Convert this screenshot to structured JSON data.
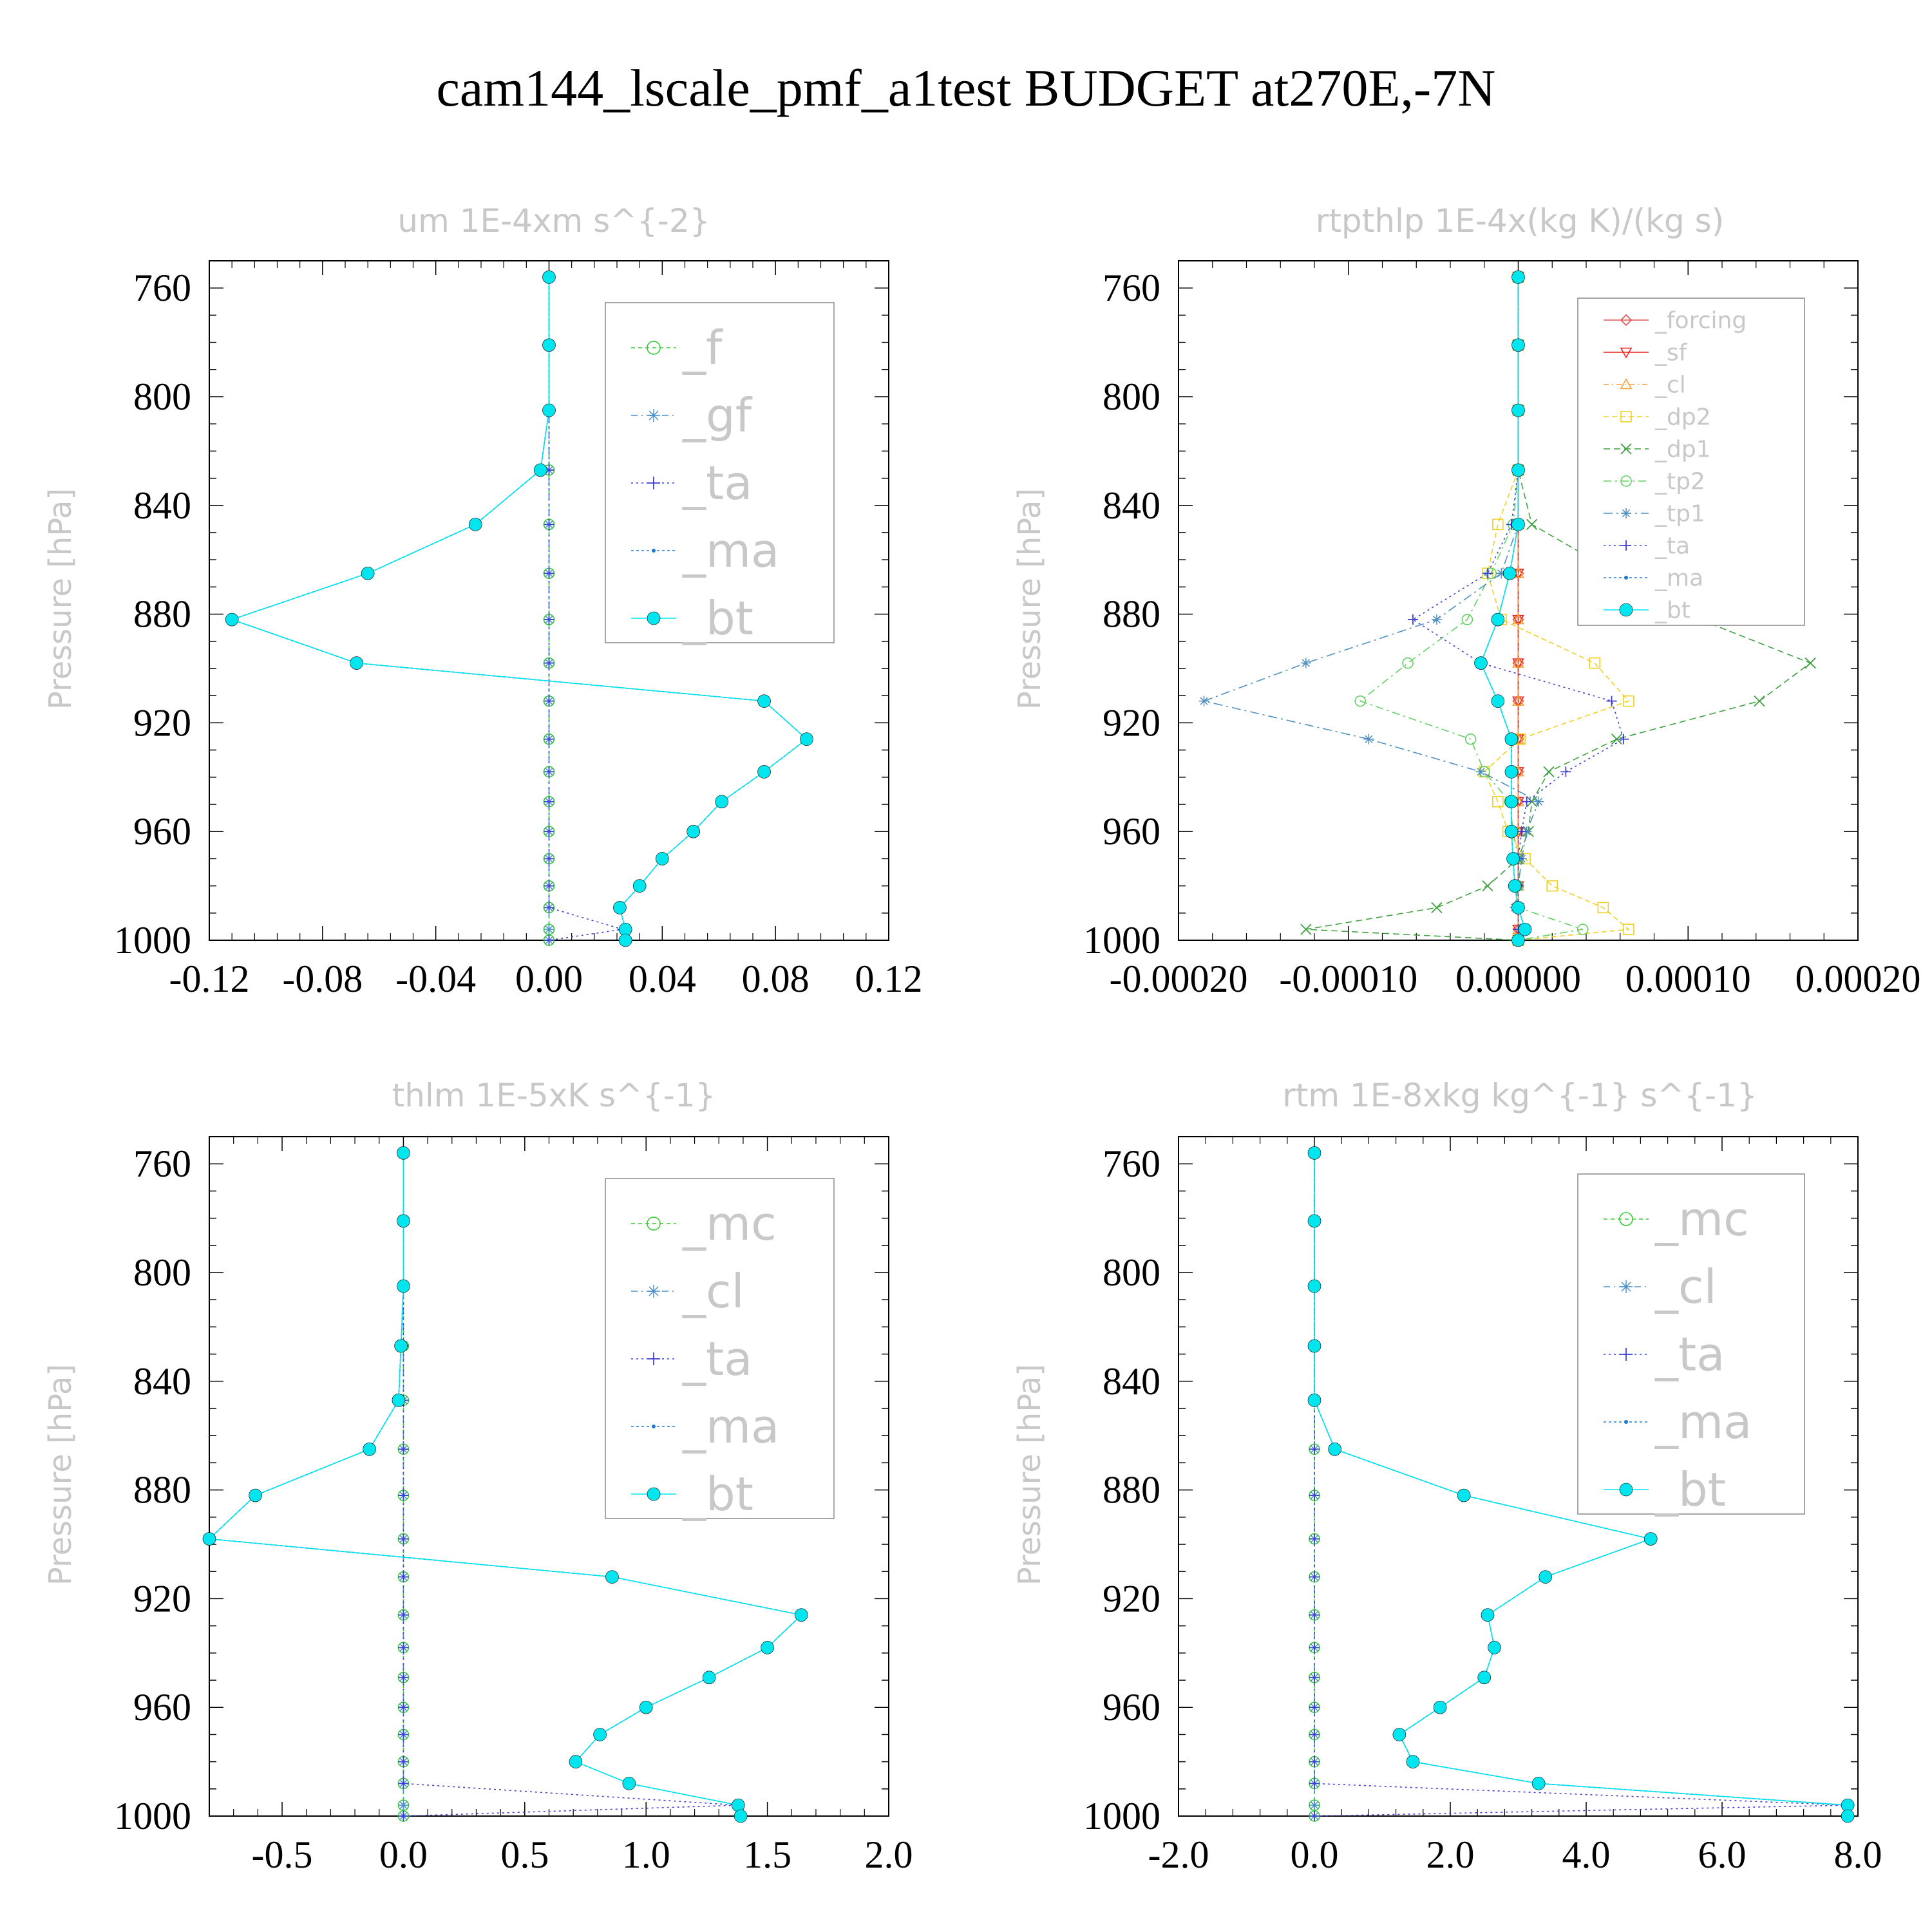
{
  "title": "cam144_lscale_pmf_a1test  BUDGET at270E,-7N",
  "colors": {
    "f": "#33cc33",
    "gf": "#4a90c8",
    "ta": "#4040d0",
    "ma": "#1f78d4",
    "bt": "#00e5ee",
    "forcing": "#e05050",
    "sf": "#ee2020",
    "cl": "#f0a030",
    "dp2": "#f0d020",
    "dp1": "#40a040",
    "tp2": "#60d060",
    "tp1": "#5090c0",
    "mc": "#33cc33",
    "cl_b": "#4a90c8"
  },
  "chart_data": [
    {
      "type": "line",
      "title": "um  1E-4xm s^{-2}",
      "ylabel": "Pressure [hPa]",
      "ylim": [
        1000,
        750
      ],
      "xlim": [
        -0.12,
        0.12
      ],
      "xticks": [
        "-0.12",
        "-0.08",
        "-0.04",
        "0.00",
        "0.04",
        "0.08",
        "0.12"
      ],
      "xtick_values": [
        -0.12,
        -0.08,
        -0.04,
        0.0,
        0.04,
        0.08,
        0.12
      ],
      "yticks": [
        "760",
        "800",
        "840",
        "880",
        "920",
        "960",
        "1000"
      ],
      "y": [
        756,
        781,
        805,
        827,
        847,
        865,
        882,
        898,
        912,
        926,
        938,
        949,
        960,
        970,
        980,
        988,
        996,
        1000
      ],
      "legend_size": "large",
      "series": [
        {
          "name": "_f",
          "key": "f",
          "marker": "circle-open",
          "dash": "6,5",
          "values": [
            0,
            0,
            0,
            0,
            0,
            0,
            0,
            0,
            0,
            0,
            0,
            0,
            0,
            0,
            0,
            0,
            0,
            0
          ]
        },
        {
          "name": "_gf",
          "key": "gf",
          "marker": "star",
          "dash": "10,6,2,6",
          "values": [
            0,
            0,
            0,
            0,
            0,
            0,
            0,
            0,
            0,
            0,
            0,
            0,
            0,
            0,
            0,
            0,
            0,
            0
          ]
        },
        {
          "name": "_ta",
          "key": "ta",
          "marker": "plus",
          "dash": "3,5",
          "values": [
            0,
            0,
            0,
            0,
            0,
            0,
            0,
            0,
            0,
            0,
            0,
            0,
            0,
            0,
            0,
            0,
            0.026,
            0
          ]
        },
        {
          "name": "_ma",
          "key": "ma",
          "marker": "dot",
          "dash": "4,4",
          "values": [
            0,
            0,
            0,
            -0.003,
            -0.026,
            -0.064,
            -0.112,
            -0.068,
            0.076,
            0.091,
            0.076,
            0.061,
            0.051,
            0.04,
            0.032,
            0.025,
            0.027,
            0.027
          ]
        },
        {
          "name": "_bt",
          "key": "bt",
          "marker": "filled",
          "dash": "",
          "values": [
            0,
            0,
            0,
            -0.003,
            -0.026,
            -0.064,
            -0.112,
            -0.068,
            0.076,
            0.091,
            0.076,
            0.061,
            0.051,
            0.04,
            0.032,
            0.025,
            0.027,
            0.027
          ]
        }
      ]
    },
    {
      "type": "line",
      "title": "rtpthlp  1E-4x(kg K)/(kg s)",
      "ylabel": "Pressure [hPa]",
      "ylim": [
        1000,
        750
      ],
      "xlim": [
        -0.0002,
        0.0002
      ],
      "xticks": [
        "-0.00020",
        "-0.00010",
        "0.00000",
        "0.00010",
        "0.00020"
      ],
      "xtick_values": [
        -0.0002,
        -0.0001,
        0.0,
        0.0001,
        0.0002
      ],
      "yticks": [
        "760",
        "800",
        "840",
        "880",
        "920",
        "960",
        "1000"
      ],
      "y": [
        756,
        781,
        805,
        827,
        847,
        865,
        882,
        898,
        912,
        926,
        938,
        949,
        960,
        970,
        980,
        988,
        996,
        1000
      ],
      "legend_size": "small",
      "series": [
        {
          "name": "_forcing",
          "key": "forcing",
          "marker": "diamond",
          "dash": "",
          "values": [
            0,
            0,
            0,
            0,
            0,
            0,
            0,
            0,
            0,
            0,
            0,
            0,
            0,
            0,
            0,
            0,
            0,
            0
          ]
        },
        {
          "name": "_sf",
          "key": "sf",
          "marker": "tri-down",
          "dash": "",
          "values": [
            0,
            0,
            0,
            0,
            0,
            0,
            0,
            0,
            0,
            0,
            0,
            0,
            0,
            0,
            0,
            0,
            0,
            0
          ]
        },
        {
          "name": "_cl",
          "key": "cl",
          "marker": "tri-up",
          "dash": "8,5,2,5",
          "values": [
            0,
            0,
            0,
            0,
            0,
            0,
            0,
            0,
            0,
            0,
            0,
            0,
            0,
            0,
            0,
            0,
            0,
            0
          ]
        },
        {
          "name": "_dp2",
          "key": "dp2",
          "marker": "square",
          "dash": "8,5",
          "values": [
            0,
            0,
            0,
            0,
            -1.2e-05,
            -1.8e-05,
            -1e-05,
            4.5e-05,
            6.5e-05,
            1e-06,
            -2e-05,
            -1.2e-05,
            -6e-06,
            4e-06,
            2e-05,
            5e-05,
            6.5e-05,
            0
          ]
        },
        {
          "name": "_dp1",
          "key": "dp1",
          "marker": "x",
          "dash": "10,6",
          "values": [
            0,
            0,
            0,
            0,
            8e-06,
            5.8e-05,
            0.000107,
            0.000172,
            0.000142,
            5.8e-05,
            1.8e-05,
            8e-06,
            6e-06,
            0,
            -1.8e-05,
            -4.8e-05,
            -0.000125,
            0
          ]
        },
        {
          "name": "_tp2",
          "key": "tp2",
          "marker": "circle-open",
          "dash": "12,6,3,6",
          "values": [
            0,
            0,
            0,
            0,
            -3e-06,
            -1.6e-05,
            -3e-05,
            -6.5e-05,
            -9.3e-05,
            -2.8e-05,
            -2e-05,
            -5e-06,
            -3e-06,
            0,
            0,
            0,
            3.8e-05,
            0
          ]
        },
        {
          "name": "_tp1",
          "key": "tp1",
          "marker": "star",
          "dash": "14,6,3,6",
          "values": [
            0,
            0,
            0,
            0,
            0,
            -1e-05,
            -4.8e-05,
            -0.000125,
            -0.000185,
            -8.8e-05,
            -2.2e-05,
            1.2e-05,
            5e-06,
            2e-06,
            0,
            -2e-06,
            2e-06,
            0
          ]
        },
        {
          "name": "_ta",
          "key": "ta",
          "marker": "plus",
          "dash": "3,5",
          "values": [
            0,
            0,
            0,
            0,
            -4e-06,
            -1.8e-05,
            -6.2e-05,
            -2.2e-05,
            5.5e-05,
            6.2e-05,
            2.8e-05,
            5e-06,
            2e-06,
            0,
            0,
            0,
            0,
            0
          ]
        },
        {
          "name": "_ma",
          "key": "ma",
          "marker": "dot",
          "dash": "4,4",
          "values": [
            0,
            0,
            0,
            0,
            0,
            -5e-06,
            -1.2e-05,
            -2.2e-05,
            -1.2e-05,
            -4e-06,
            -4e-06,
            -4e-06,
            -4e-06,
            -3e-06,
            -2e-06,
            0,
            4e-06,
            0
          ]
        },
        {
          "name": "_bt",
          "key": "bt",
          "marker": "filled",
          "dash": "",
          "values": [
            0,
            0,
            0,
            0,
            0,
            -5e-06,
            -1.2e-05,
            -2.2e-05,
            -1.2e-05,
            -4e-06,
            -4e-06,
            -4e-06,
            -4e-06,
            -3e-06,
            -2e-06,
            0,
            4e-06,
            0
          ]
        }
      ]
    },
    {
      "type": "line",
      "title": "thlm  1E-5xK s^{-1}",
      "ylabel": "Pressure [hPa]",
      "ylim": [
        1000,
        750
      ],
      "xlim": [
        -0.8,
        2.0
      ],
      "xticks": [
        "-0.5",
        "0.0",
        "0.5",
        "1.0",
        "1.5",
        "2.0"
      ],
      "xtick_values": [
        -0.5,
        0.0,
        0.5,
        1.0,
        1.5,
        2.0
      ],
      "yticks": [
        "760",
        "800",
        "840",
        "880",
        "920",
        "960",
        "1000"
      ],
      "y": [
        756,
        781,
        805,
        827,
        847,
        865,
        882,
        898,
        912,
        926,
        938,
        949,
        960,
        970,
        980,
        988,
        996,
        1000
      ],
      "legend_size": "large",
      "series": [
        {
          "name": "_mc",
          "key": "mc",
          "marker": "circle-open",
          "dash": "6,5",
          "values": [
            0,
            0,
            0,
            0,
            0,
            0,
            0,
            0,
            0,
            0,
            0,
            0,
            0,
            0,
            0,
            0,
            0,
            0
          ]
        },
        {
          "name": "_cl",
          "key": "cl_b",
          "marker": "star",
          "dash": "10,6,2,6",
          "values": [
            0,
            0,
            0,
            0,
            0,
            0,
            0,
            0,
            0,
            0,
            0,
            0,
            0,
            0,
            0,
            0,
            0,
            0
          ]
        },
        {
          "name": "_ta",
          "key": "ta",
          "marker": "plus",
          "dash": "3,5",
          "values": [
            0,
            0,
            0,
            0,
            0,
            0,
            0,
            0,
            0,
            0,
            0,
            0,
            0,
            0,
            0,
            0,
            1.38,
            0
          ]
        },
        {
          "name": "_ma",
          "key": "ma",
          "marker": "dot",
          "dash": "4,4",
          "values": [
            0,
            0,
            0,
            -0.01,
            -0.02,
            -0.14,
            -0.61,
            -0.8,
            0.86,
            1.64,
            1.5,
            1.26,
            1.0,
            0.81,
            0.71,
            0.93,
            1.38,
            1.39
          ]
        },
        {
          "name": "_bt",
          "key": "bt",
          "marker": "filled",
          "dash": "",
          "values": [
            0,
            0,
            0,
            -0.01,
            -0.02,
            -0.14,
            -0.61,
            -0.8,
            0.86,
            1.64,
            1.5,
            1.26,
            1.0,
            0.81,
            0.71,
            0.93,
            1.38,
            1.39
          ]
        }
      ]
    },
    {
      "type": "line",
      "title": "rtm  1E-8xkg kg^{-1} s^{-1}",
      "ylabel": "Pressure [hPa]",
      "ylim": [
        1000,
        750
      ],
      "xlim": [
        -2.0,
        8.0
      ],
      "xticks": [
        "-2.0",
        "0.0",
        "2.0",
        "4.0",
        "6.0",
        "8.0"
      ],
      "xtick_values": [
        -2.0,
        0.0,
        2.0,
        4.0,
        6.0,
        8.0
      ],
      "yticks": [
        "760",
        "800",
        "840",
        "880",
        "920",
        "960",
        "1000"
      ],
      "y": [
        756,
        781,
        805,
        827,
        847,
        865,
        882,
        898,
        912,
        926,
        938,
        949,
        960,
        970,
        980,
        988,
        996,
        1000
      ],
      "legend_size": "large",
      "series": [
        {
          "name": "_mc",
          "key": "mc",
          "marker": "circle-open",
          "dash": "6,5",
          "values": [
            0,
            0,
            0,
            0,
            0,
            0,
            0,
            0,
            0,
            0,
            0,
            0,
            0,
            0,
            0,
            0,
            0,
            0
          ]
        },
        {
          "name": "_cl",
          "key": "cl_b",
          "marker": "star",
          "dash": "10,6,2,6",
          "values": [
            0,
            0,
            0,
            0,
            0,
            0,
            0,
            0,
            0,
            0,
            0,
            0,
            0,
            0,
            0,
            0,
            0,
            0
          ]
        },
        {
          "name": "_ta",
          "key": "ta",
          "marker": "plus",
          "dash": "3,5",
          "values": [
            0,
            0,
            0,
            0,
            0,
            0,
            0,
            0,
            0,
            0,
            0,
            0,
            0,
            0,
            0,
            0,
            7.85,
            0
          ]
        },
        {
          "name": "_ma",
          "key": "ma",
          "marker": "dot",
          "dash": "4,4",
          "values": [
            0,
            0,
            0,
            0,
            0,
            0.3,
            2.2,
            4.95,
            3.4,
            2.55,
            2.65,
            2.5,
            1.85,
            1.25,
            1.45,
            3.3,
            7.85,
            7.85
          ]
        },
        {
          "name": "_bt",
          "key": "bt",
          "marker": "filled",
          "dash": "",
          "values": [
            0,
            0,
            0,
            0,
            0,
            0.3,
            2.2,
            4.95,
            3.4,
            2.55,
            2.65,
            2.5,
            1.85,
            1.25,
            1.45,
            3.3,
            7.85,
            7.85
          ]
        }
      ]
    }
  ]
}
